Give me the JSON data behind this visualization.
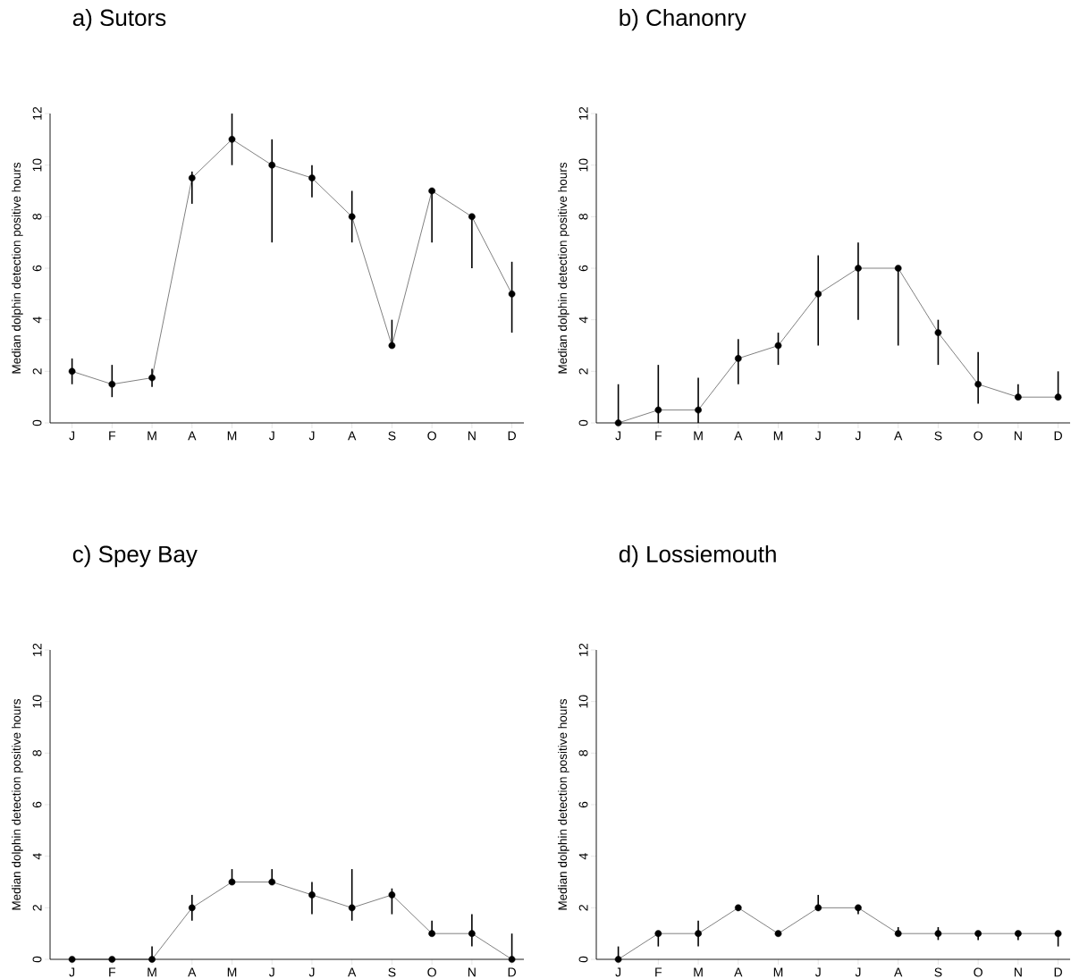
{
  "chart_data": [
    {
      "type": "line",
      "title": "a) Sutors",
      "ylabel": "Median dolphin detection positive hours",
      "categories": [
        "J",
        "F",
        "M",
        "A",
        "M",
        "J",
        "J",
        "A",
        "S",
        "O",
        "N",
        "D"
      ],
      "ylim": [
        0,
        12
      ],
      "yticks": [
        0,
        2,
        4,
        6,
        8,
        10,
        12
      ],
      "marker": "circle",
      "series": [
        {
          "color": "#000000",
          "values": [
            2,
            1.5,
            1.75,
            9.5,
            11,
            10,
            9.5,
            8,
            3,
            9,
            8,
            5
          ],
          "errors": [
            [
              1.5,
              2.5
            ],
            [
              1,
              2.25
            ],
            [
              1.4,
              2.1
            ],
            [
              8.5,
              9.75
            ],
            [
              10,
              12
            ],
            [
              7,
              11
            ],
            [
              8.75,
              10
            ],
            [
              7,
              9
            ],
            [
              3,
              4
            ],
            [
              7,
              9
            ],
            [
              6,
              8
            ],
            [
              3.5,
              6.25
            ]
          ]
        }
      ]
    },
    {
      "type": "line",
      "title": "b) Chanonry",
      "ylabel": "Median dolphin detection positive hours",
      "categories": [
        "J",
        "F",
        "M",
        "A",
        "M",
        "J",
        "J",
        "A",
        "S",
        "O",
        "N",
        "D"
      ],
      "ylim": [
        0,
        12
      ],
      "yticks": [
        0,
        2,
        4,
        6,
        8,
        10,
        12
      ],
      "marker": "circle",
      "series": [
        {
          "color": "#000000",
          "values": [
            0,
            0.5,
            0.5,
            2.5,
            3,
            5,
            6,
            6,
            3.5,
            1.5,
            1,
            1
          ],
          "errors": [
            [
              0,
              1.5
            ],
            [
              0,
              2.25
            ],
            [
              0,
              1.75
            ],
            [
              1.5,
              3.25
            ],
            [
              2.25,
              3.5
            ],
            [
              3,
              6.5
            ],
            [
              4,
              7
            ],
            [
              3,
              6
            ],
            [
              2.25,
              4
            ],
            [
              0.75,
              2.75
            ],
            [
              1,
              1.5
            ],
            [
              1,
              2
            ]
          ]
        }
      ]
    },
    {
      "type": "line",
      "title": "c) Spey Bay",
      "ylabel": "Median dolphin detection positive hours",
      "categories": [
        "J",
        "F",
        "M",
        "A",
        "M",
        "J",
        "J",
        "A",
        "S",
        "O",
        "N",
        "D"
      ],
      "ylim": [
        0,
        12
      ],
      "yticks": [
        0,
        2,
        4,
        6,
        8,
        10,
        12
      ],
      "marker": "circle",
      "series": [
        {
          "color": "#000000",
          "values": [
            0,
            0,
            0,
            2,
            3,
            3,
            2.5,
            2,
            2.5,
            1,
            1,
            0
          ],
          "errors": [
            null,
            null,
            [
              0,
              0.5
            ],
            [
              1.5,
              2.5
            ],
            [
              3,
              3.5
            ],
            [
              3,
              3.5
            ],
            [
              1.75,
              3
            ],
            [
              1.5,
              3.5
            ],
            [
              1.75,
              2.75
            ],
            [
              1,
              1.5
            ],
            [
              0.5,
              1.75
            ],
            [
              0,
              1
            ]
          ]
        }
      ]
    },
    {
      "type": "line",
      "title": "d) Lossiemouth",
      "ylabel": "Median dolphin detection positive hours",
      "categories": [
        "J",
        "F",
        "M",
        "A",
        "M",
        "J",
        "J",
        "A",
        "S",
        "O",
        "N",
        "D"
      ],
      "ylim": [
        0,
        12
      ],
      "yticks": [
        0,
        2,
        4,
        6,
        8,
        10,
        12
      ],
      "marker": "circle",
      "series": [
        {
          "color": "#000000",
          "values": [
            0,
            1,
            1,
            2,
            1,
            2,
            2,
            1,
            1,
            1,
            1,
            1
          ],
          "errors": [
            [
              0,
              0.5
            ],
            [
              0.5,
              1
            ],
            [
              0.5,
              1.5
            ],
            null,
            null,
            [
              2,
              2.5
            ],
            [
              1.75,
              2
            ],
            [
              1,
              1.25
            ],
            [
              0.75,
              1.25
            ],
            [
              0.75,
              1
            ],
            [
              0.75,
              1
            ],
            [
              0.5,
              1
            ]
          ]
        }
      ]
    }
  ]
}
